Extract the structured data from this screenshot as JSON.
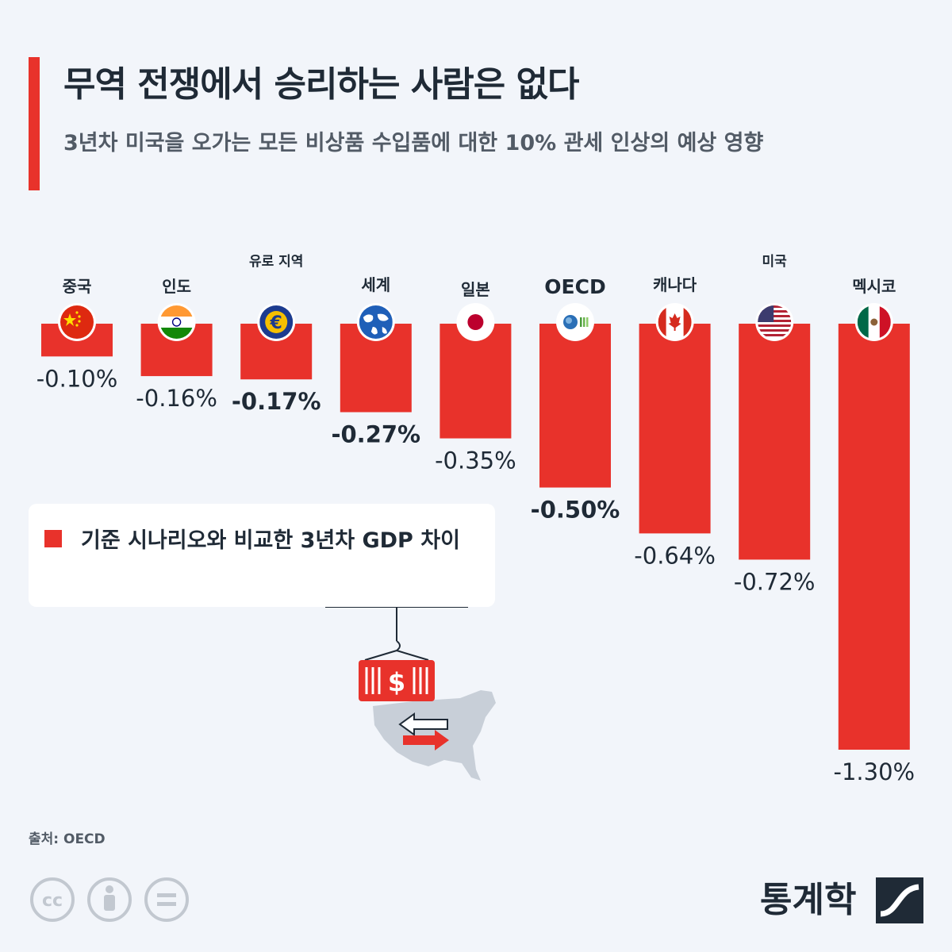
{
  "header": {
    "title": "무역 전쟁에서 승리하는 사람은 없다",
    "subtitle": "3년차 미국을 오가는 모든 비상품 수입품에 대한 10% 관세 인상의 예상 영향"
  },
  "legend": {
    "label": "기준 시나리오와 비교한 3년차 GDP 차이"
  },
  "footer": {
    "source": "출처: OECD",
    "brand": "통계학"
  },
  "colors": {
    "bar": "#e8322b",
    "text": "#1f2a36",
    "muted": "#525b66",
    "background": "#f2f5fa"
  },
  "chart_data": {
    "type": "bar",
    "orientation": "vertical-negative",
    "categories": [
      "중국",
      "인도",
      "유로 지역",
      "세계",
      "일본",
      "OECD",
      "캐나다",
      "미국",
      "멕시코"
    ],
    "values": [
      -0.1,
      -0.16,
      -0.17,
      -0.27,
      -0.35,
      -0.5,
      -0.64,
      -0.72,
      -1.3
    ],
    "value_labels": [
      "-0.10%",
      "-0.16%",
      "-0.17%",
      "-0.27%",
      "-0.35%",
      "-0.50%",
      "-0.64%",
      "-0.72%",
      "-1.30%"
    ],
    "bold_labels": [
      false,
      false,
      true,
      true,
      false,
      true,
      false,
      false,
      false
    ],
    "flags": [
      "china-flag-icon",
      "india-flag-icon",
      "euro-icon",
      "globe-icon",
      "japan-flag-icon",
      "oecd-logo-icon",
      "canada-flag-icon",
      "usa-flag-icon",
      "mexico-flag-icon"
    ],
    "ylim": [
      -1.3,
      0
    ],
    "series": [
      {
        "name": "기준 시나리오와 비교한 3년차 GDP 차이",
        "values": [
          -0.1,
          -0.16,
          -0.17,
          -0.27,
          -0.35,
          -0.5,
          -0.64,
          -0.72,
          -1.3
        ]
      }
    ]
  }
}
